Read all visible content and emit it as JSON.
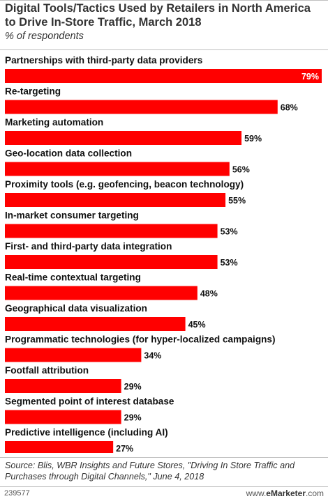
{
  "chart_data": {
    "type": "bar",
    "orientation": "horizontal",
    "title": "Digital Tools/Tactics Used by Retailers in North America to Drive In-Store Traffic, March 2018",
    "subtitle": "% of respondents",
    "xlim": [
      0,
      79
    ],
    "grid": false,
    "legend": "none",
    "bar_color": "#ff0000",
    "categories": [
      "Partnerships with third-party data providers",
      "Re-targeting",
      "Marketing automation",
      "Geo-location data collection",
      "Proximity tools (e.g. geofencing, beacon technology)",
      "In-market consumer targeting",
      "First- and third-party data integration",
      "Real-time contextual targeting",
      "Geographical data visualization",
      "Programmatic technologies (for hyper-localized campaigns)",
      "Footfall attribution",
      "Segmented point of interest database",
      "Predictive intelligence (including AI)"
    ],
    "values": [
      79,
      68,
      59,
      56,
      55,
      53,
      53,
      48,
      45,
      34,
      29,
      29,
      27
    ],
    "value_labels": [
      "79%",
      "68%",
      "59%",
      "56%",
      "55%",
      "53%",
      "53%",
      "48%",
      "45%",
      "34%",
      "29%",
      "29%",
      "27%"
    ]
  },
  "source": "Source: Blis, WBR Insights and Future Stores, \"Driving In Store Traffic and Purchases through Digital Channels,\" June 4, 2018",
  "footer": {
    "chart_id": "239577",
    "brand_prefix": "www.",
    "brand_name": "eMarketer",
    "brand_suffix": ".com"
  }
}
